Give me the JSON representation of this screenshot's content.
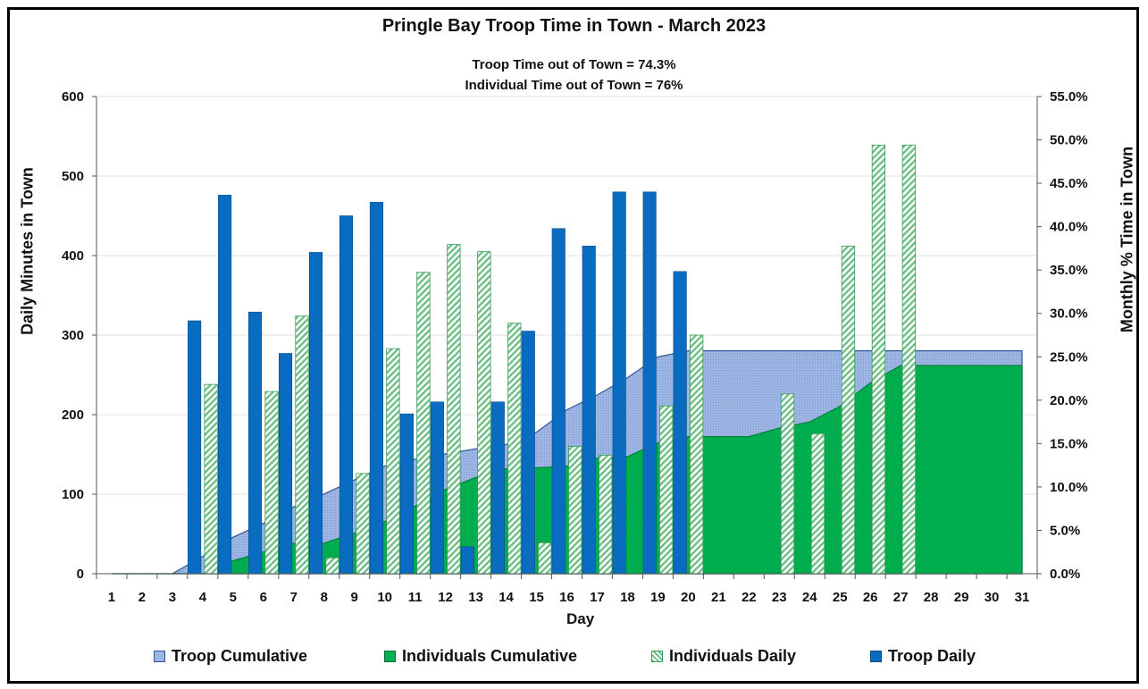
{
  "chart_data": {
    "type": "bar",
    "title": "Pringle Bay Troop Time in Town - March 2023",
    "subtitles": [
      "Troop Time out of Town =  74.3%",
      "Individual Time out of Town =  76%"
    ],
    "xlabel": "Day",
    "ylabel": "Daily Minutes in Town",
    "y2label": "Monthly % Time in Town",
    "categories": [
      "1",
      "2",
      "3",
      "4",
      "5",
      "6",
      "7",
      "8",
      "9",
      "10",
      "11",
      "12",
      "13",
      "14",
      "15",
      "16",
      "17",
      "18",
      "19",
      "20",
      "21",
      "22",
      "23",
      "24",
      "25",
      "26",
      "27",
      "28",
      "29",
      "30",
      "31"
    ],
    "ylim": [
      0,
      600
    ],
    "yticks": [
      "0",
      "100",
      "200",
      "300",
      "400",
      "500",
      "600"
    ],
    "y2lim": [
      0,
      55
    ],
    "y2ticks": [
      "0.0%",
      "5.0%",
      "10.0%",
      "15.0%",
      "20.0%",
      "25.0%",
      "30.0%",
      "35.0%",
      "40.0%",
      "45.0%",
      "50.0%",
      "55.0%"
    ],
    "grid": true,
    "legend_position": "bottom",
    "series": [
      {
        "name": "Troop Cumulative",
        "kind": "area",
        "axis": "right",
        "color": "#8EA9DB",
        "values": [
          0,
          0,
          0,
          2,
          4.2,
          5.8,
          7.7,
          9.2,
          10.8,
          12.4,
          13.2,
          13.8,
          14.4,
          14.9,
          16.3,
          18.9,
          20.6,
          22.6,
          25,
          25.7,
          25.7,
          25.7,
          25.7,
          25.7,
          25.7,
          25.7,
          25.7,
          25.7,
          25.7,
          25.7,
          25.7
        ]
      },
      {
        "name": "Individuals Cumulative",
        "kind": "area",
        "axis": "right",
        "color": "#00B050",
        "values": [
          0,
          0,
          0,
          0,
          1.5,
          2.5,
          3.5,
          3.5,
          4.7,
          6,
          7.8,
          9.7,
          11.1,
          12.1,
          12.2,
          12.4,
          13.3,
          13.5,
          15.1,
          15.8,
          15.8,
          15.8,
          16.8,
          17.5,
          19.3,
          22,
          24,
          24,
          24,
          24,
          24
        ]
      },
      {
        "name": "Individuals Daily",
        "kind": "bar",
        "axis": "left",
        "color": "#A9D9B6",
        "values": [
          0,
          0,
          0,
          238,
          0,
          229,
          324,
          20,
          126,
          283,
          379,
          414,
          405,
          315,
          39,
          160,
          149,
          0,
          211,
          300,
          0,
          0,
          226,
          176,
          412,
          539,
          539,
          0,
          0,
          0,
          0
        ]
      },
      {
        "name": "Troop Daily",
        "kind": "bar",
        "axis": "left",
        "color": "#0A6CC1",
        "values": [
          0,
          0,
          0,
          318,
          476,
          329,
          277,
          404,
          450,
          467,
          201,
          216,
          34,
          216,
          305,
          434,
          412,
          480,
          480,
          380,
          0,
          0,
          0,
          0,
          0,
          0,
          0,
          0,
          0,
          0,
          0
        ]
      }
    ]
  }
}
